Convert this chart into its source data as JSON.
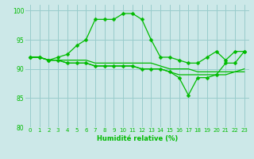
{
  "title": "",
  "xlabel": "Humidité relative (%)",
  "ylabel": "",
  "xlim": [
    -0.5,
    23.5
  ],
  "ylim": [
    80,
    101
  ],
  "yticks": [
    80,
    85,
    90,
    95,
    100
  ],
  "xtick_labels": [
    "0",
    "1",
    "2",
    "3",
    "4",
    "5",
    "6",
    "7",
    "8",
    "9",
    "10",
    "11",
    "12",
    "13",
    "14",
    "15",
    "16",
    "17",
    "18",
    "19",
    "20",
    "21",
    "22",
    "23"
  ],
  "bg_color": "#cce8e8",
  "grid_color": "#99cccc",
  "line_color": "#00bb00",
  "lines": [
    {
      "x": [
        0,
        1,
        2,
        3,
        4,
        5,
        6,
        7,
        8,
        9,
        10,
        11,
        12,
        13,
        14,
        15,
        16,
        17,
        18,
        19,
        20,
        21,
        22,
        23
      ],
      "y": [
        92,
        92,
        91.5,
        91.5,
        91.5,
        91.5,
        91.5,
        91,
        91,
        91,
        91,
        91,
        91,
        91,
        90.5,
        90,
        90,
        90,
        89.5,
        89.5,
        89.5,
        89.5,
        89.5,
        89.5
      ],
      "marker": null,
      "lw": 0.9
    },
    {
      "x": [
        0,
        1,
        2,
        3,
        4,
        5,
        6,
        7,
        8,
        9,
        10,
        11,
        12,
        13,
        14,
        15,
        16,
        17,
        18,
        19,
        20,
        21,
        22,
        23
      ],
      "y": [
        92,
        92,
        91.5,
        91.5,
        91,
        91,
        91,
        90.5,
        90.5,
        90.5,
        90.5,
        90.5,
        90,
        90,
        90,
        89.5,
        89,
        89,
        89,
        89,
        89,
        89,
        89.5,
        90
      ],
      "marker": null,
      "lw": 0.9
    },
    {
      "x": [
        0,
        1,
        2,
        3,
        4,
        5,
        6,
        7,
        8,
        9,
        10,
        11,
        12,
        13,
        14,
        15,
        16,
        17,
        18,
        19,
        20,
        21,
        22,
        23
      ],
      "y": [
        92,
        92,
        91.5,
        92,
        92.5,
        94,
        95,
        98.5,
        98.5,
        98.5,
        99.5,
        99.5,
        98.5,
        95,
        92,
        92,
        91.5,
        91,
        91,
        92,
        93,
        91.5,
        93,
        93
      ],
      "marker": "D",
      "markersize": 2.5,
      "lw": 0.9
    },
    {
      "x": [
        0,
        1,
        2,
        3,
        4,
        5,
        6,
        7,
        8,
        9,
        10,
        11,
        12,
        13,
        14,
        15,
        16,
        17,
        18,
        19,
        20,
        21,
        22,
        23
      ],
      "y": [
        92,
        92,
        91.5,
        91.5,
        91,
        91,
        91,
        90.5,
        90.5,
        90.5,
        90.5,
        90.5,
        90,
        90,
        90,
        89.5,
        88.5,
        85.5,
        88.5,
        88.5,
        89,
        91,
        91,
        93
      ],
      "marker": "D",
      "markersize": 2.5,
      "lw": 0.9
    }
  ]
}
